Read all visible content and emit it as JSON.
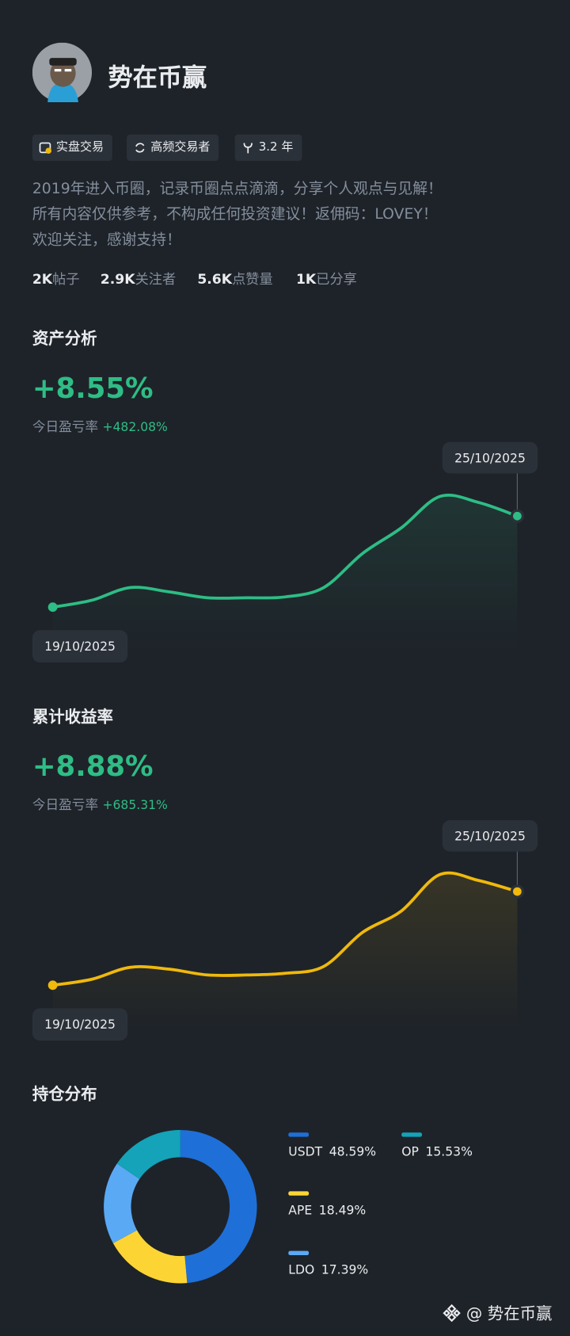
{
  "profile": {
    "name": "势在币赢",
    "badges": [
      "实盘交易",
      "高频交易者",
      "3.2 年"
    ],
    "bio": [
      "2019年进入币圈，记录币圈点点滴滴，分享个人观点与见解！",
      "所有内容仅供参考，不构成任何投资建议！返佣码：LOVEY！",
      "欢迎关注，感谢支持！"
    ],
    "stats": [
      {
        "value": "2K",
        "label": "帖子"
      },
      {
        "value": "2.9K",
        "label": "关注者"
      },
      {
        "value": "5.6K",
        "label": "点赞量"
      },
      {
        "value": "1K",
        "label": "已分享"
      }
    ]
  },
  "chart_data": [
    {
      "type": "line",
      "title": "资产分析",
      "headline": "+8.55%",
      "sub_label": "今日盈亏率",
      "sub_value": "+482.08%",
      "color": "#2ebd85",
      "categories": [
        "19/10/2025",
        null,
        null,
        null,
        null,
        null,
        null,
        null,
        null,
        null,
        null,
        null,
        "25/10/2025"
      ],
      "values": [
        0,
        0.64,
        1.84,
        1.44,
        0.88,
        0.88,
        0.96,
        1.84,
        5.03,
        7.43,
        10.39,
        9.83,
        8.55
      ]
    },
    {
      "type": "line",
      "title": "累计收益率",
      "headline": "+8.88%",
      "sub_label": "今日盈亏率",
      "sub_value": "+685.31%",
      "color": "#f0b90b",
      "categories": [
        "19/10/2025",
        null,
        null,
        null,
        null,
        null,
        null,
        null,
        null,
        null,
        null,
        null,
        "25/10/2025"
      ],
      "values": [
        0,
        0.56,
        1.7,
        1.53,
        0.97,
        0.97,
        1.13,
        1.78,
        5.0,
        7.02,
        10.49,
        9.93,
        8.88
      ]
    },
    {
      "type": "pie",
      "title": "持仓分布",
      "categories": [
        "USDT",
        "APE",
        "LDO",
        "OP"
      ],
      "values": [
        48.59,
        18.49,
        17.39,
        15.53
      ],
      "value_labels": [
        "48.59%",
        "18.49%",
        "17.39%",
        "15.53%"
      ],
      "colors": [
        "#1f6fd8",
        "#fcd535",
        "#5aa9f5",
        "#14a3b8"
      ]
    }
  ],
  "watermark": "@ 势在币赢"
}
